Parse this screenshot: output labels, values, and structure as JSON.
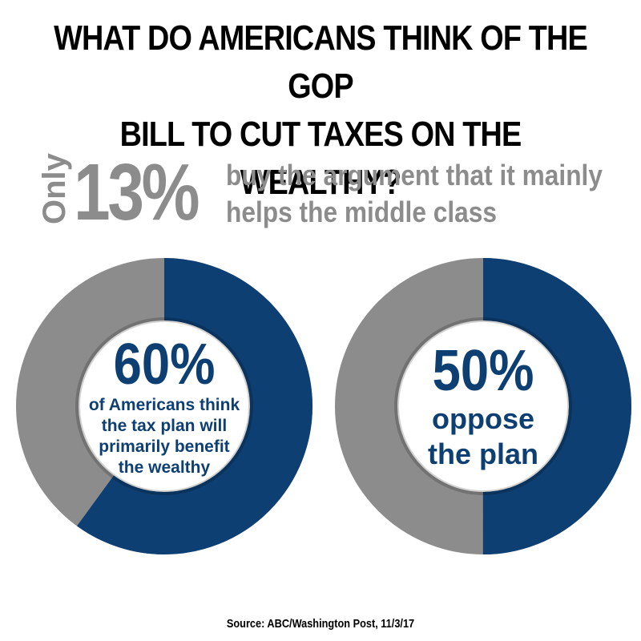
{
  "title_lines": [
    "WHAT DO AMERICANS THINK OF THE GOP",
    "BILL TO CUT TAXES ON THE WEALTHY?"
  ],
  "headline_stat": {
    "prefix": "Only",
    "value": "13%",
    "text_lines": [
      "buy the argument that it mainly",
      "helps the middle class"
    ]
  },
  "source": "Source: ABC/Washington Post, 11/3/17",
  "colors": {
    "blue": "#0d3f73",
    "gray": "#8c8c8c",
    "text_gray": "#8c8c8c"
  },
  "chart_data": [
    {
      "type": "pie",
      "donut": true,
      "value_percent": 60,
      "remainder_percent": 40,
      "label": "60%",
      "description_lines": [
        "of Americans think",
        "the tax plan will",
        "primarily benefit",
        "the wealthy"
      ]
    },
    {
      "type": "pie",
      "donut": true,
      "value_percent": 50,
      "remainder_percent": 50,
      "label": "50%",
      "description_lines": [
        "oppose",
        "the plan"
      ]
    }
  ]
}
